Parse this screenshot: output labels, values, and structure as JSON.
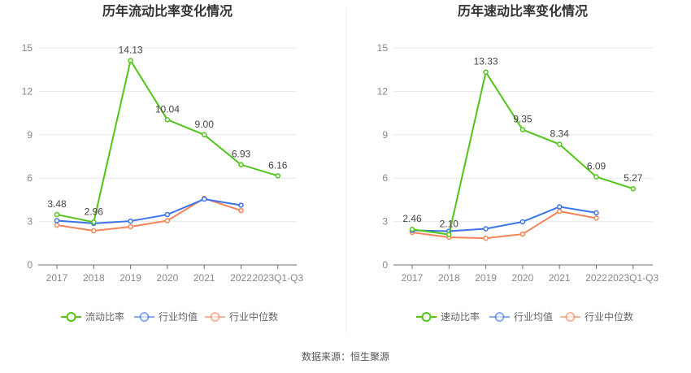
{
  "source": "数据来源：恒生聚源",
  "colors": {
    "main": "#52c41a",
    "avg": "#3b74e8",
    "median": "#f5845a"
  },
  "chart_data": [
    {
      "type": "line",
      "title": "历年流动比率变化情况",
      "categories": [
        "2017",
        "2018",
        "2019",
        "2020",
        "2021",
        "2022",
        "2023Q1-Q3"
      ],
      "ylim": [
        0,
        15
      ],
      "yticks": [
        0,
        3,
        6,
        9,
        12,
        15
      ],
      "grid": true,
      "legend": "bottom",
      "series": [
        {
          "name": "流动比率",
          "values": [
            3.48,
            2.96,
            14.13,
            10.04,
            9.0,
            6.93,
            6.16
          ],
          "labels": [
            "3.48",
            "2.96",
            "14.13",
            "10.04",
            "9.00",
            "6.93",
            "6.16"
          ]
        },
        {
          "name": "行业均值",
          "values": [
            3.06,
            2.87,
            3.03,
            3.48,
            4.55,
            4.13,
            null
          ]
        },
        {
          "name": "行业中位数",
          "values": [
            2.75,
            2.36,
            2.64,
            3.06,
            4.6,
            3.76,
            null
          ]
        }
      ]
    },
    {
      "type": "line",
      "title": "历年速动比率变化情况",
      "categories": [
        "2017",
        "2018",
        "2019",
        "2020",
        "2021",
        "2022",
        "2023Q1-Q3"
      ],
      "ylim": [
        0,
        15
      ],
      "yticks": [
        0,
        3,
        6,
        9,
        12,
        15
      ],
      "grid": true,
      "legend": "bottom",
      "series": [
        {
          "name": "速动比率",
          "values": [
            2.46,
            2.1,
            13.33,
            9.35,
            8.34,
            6.09,
            5.27
          ],
          "labels": [
            "2.46",
            "2.10",
            "13.33",
            "9.35",
            "8.34",
            "6.09",
            "5.27"
          ]
        },
        {
          "name": "行业均值",
          "values": [
            2.39,
            2.33,
            2.5,
            2.98,
            4.02,
            3.6,
            null
          ]
        },
        {
          "name": "行业中位数",
          "values": [
            2.25,
            1.91,
            1.85,
            2.13,
            3.71,
            3.23,
            null
          ]
        }
      ]
    }
  ]
}
